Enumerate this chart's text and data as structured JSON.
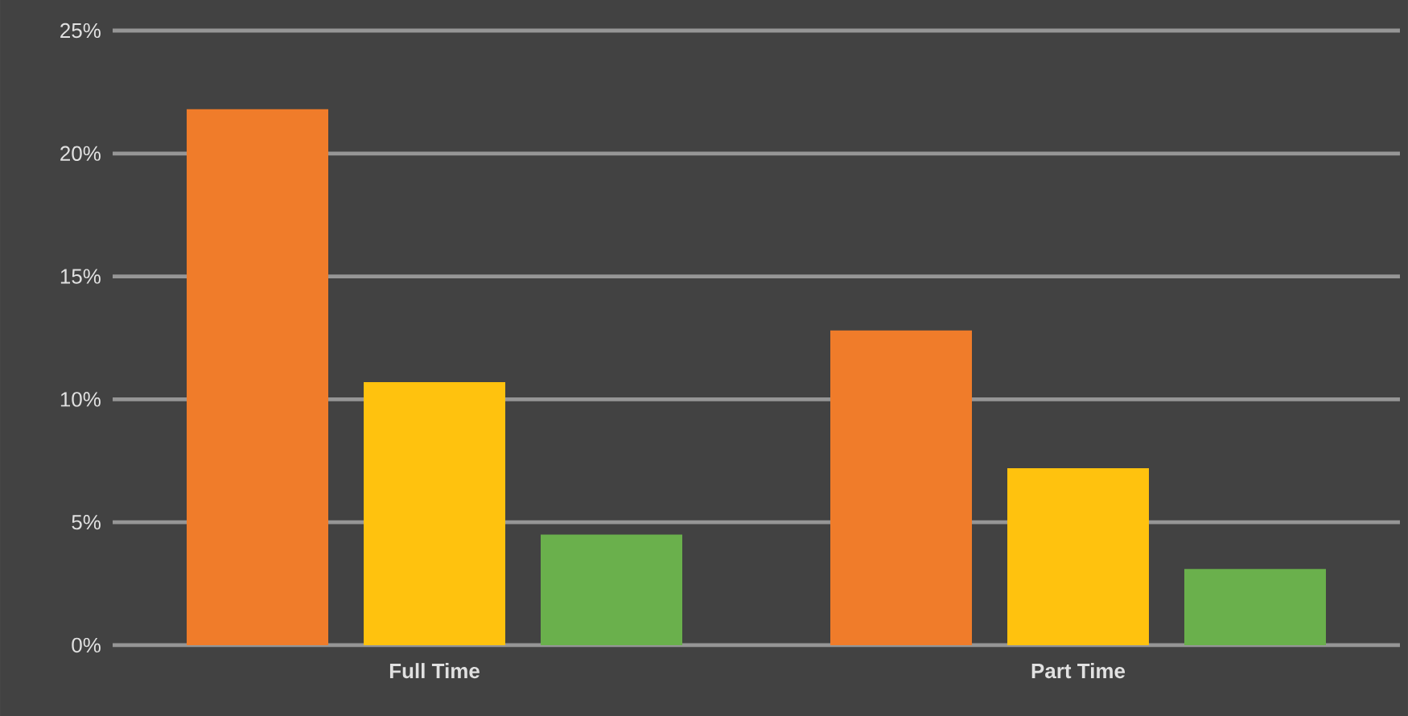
{
  "chart_data": {
    "type": "bar",
    "categories": [
      "Full Time",
      "Part Time"
    ],
    "series": [
      {
        "color": "#f07c2a",
        "values": [
          21.8,
          12.8
        ]
      },
      {
        "color": "#ffc20e",
        "values": [
          10.7,
          7.2
        ]
      },
      {
        "color": "#6ab04c",
        "values": [
          4.5,
          3.1
        ]
      }
    ],
    "ylim": [
      0,
      25
    ],
    "yticks": [
      {
        "value": 0,
        "label": "0%"
      },
      {
        "value": 5,
        "label": "5%"
      },
      {
        "value": 10,
        "label": "10%"
      },
      {
        "value": 15,
        "label": "15%"
      },
      {
        "value": 20,
        "label": "20%"
      },
      {
        "value": 25,
        "label": "25%"
      }
    ],
    "grid": "y"
  }
}
